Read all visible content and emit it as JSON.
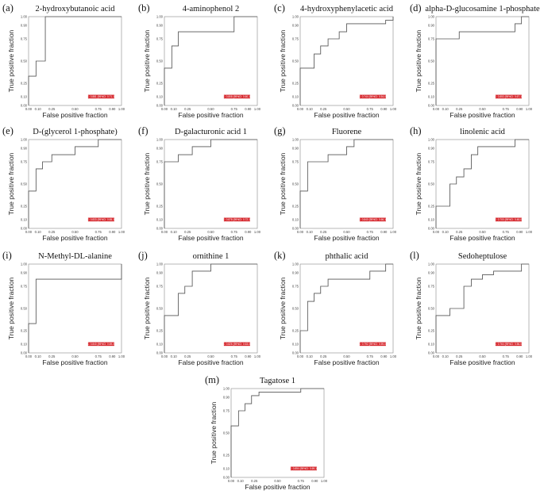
{
  "figure": {
    "axis_x_label": "False positive fraction",
    "axis_y_label": "True positive fraction",
    "colors": {
      "curve": "#555555",
      "frame": "#888888",
      "auc_box": "#d6262c",
      "background": "#ffffff"
    }
  },
  "chart_data": [
    {
      "type": "line",
      "panel": "(a)",
      "title": "2-hydroxybutanoic acid",
      "xlabel": "False positive fraction",
      "ylabel": "True positive fraction",
      "xlim": [
        0,
        1
      ],
      "ylim": [
        0,
        1
      ],
      "xticks": [
        "0.00",
        "0.10",
        "0.25",
        "0.50",
        "0.75",
        "0.90",
        "1.00"
      ],
      "yticks": [
        "0.00",
        "0.10",
        "0.25",
        "0.50",
        "0.75",
        "0.90",
        "1.00"
      ],
      "x": [
        0,
        0,
        0.08,
        0.08,
        0.18,
        0.18,
        1.0
      ],
      "y": [
        0,
        0.33,
        0.33,
        0.5,
        0.5,
        1.0,
        1.0
      ],
      "auc_label": "AUC: 0.881 (95%CI: 0.71-1.00)"
    },
    {
      "type": "line",
      "panel": "(b)",
      "title": "4-aminophenol 2",
      "xlabel": "False positive fraction",
      "ylabel": "True positive fraction",
      "xlim": [
        0,
        1
      ],
      "ylim": [
        0,
        1
      ],
      "xticks": [
        "0.00",
        "0.10",
        "0.25",
        "0.50",
        "0.75",
        "0.90",
        "1.00"
      ],
      "yticks": [
        "0.00",
        "0.10",
        "0.25",
        "0.50",
        "0.75",
        "0.90",
        "1.00"
      ],
      "x": [
        0,
        0,
        0.08,
        0.08,
        0.15,
        0.15,
        0.75,
        0.75,
        1.0
      ],
      "y": [
        0,
        0.42,
        0.42,
        0.67,
        0.67,
        0.83,
        0.83,
        1.0,
        1.0
      ],
      "auc_label": "AUC: 0.808 (95%CI: 0.60-1.00)"
    },
    {
      "type": "line",
      "panel": "(c)",
      "title": "4-hydroxyphenylacetic acid",
      "xlabel": "False positive fraction",
      "ylabel": "True positive fraction",
      "xlim": [
        0,
        1
      ],
      "ylim": [
        0,
        1
      ],
      "xticks": [
        "0.00",
        "0.10",
        "0.25",
        "0.50",
        "0.75",
        "0.90",
        "1.00"
      ],
      "yticks": [
        "0.00",
        "0.10",
        "0.25",
        "0.50",
        "0.75",
        "0.90",
        "1.00"
      ],
      "x": [
        0,
        0,
        0.15,
        0.15,
        0.22,
        0.22,
        0.3,
        0.3,
        0.42,
        0.42,
        0.5,
        0.5,
        0.92,
        0.92,
        1.0,
        1.0
      ],
      "y": [
        0,
        0.42,
        0.42,
        0.58,
        0.58,
        0.67,
        0.67,
        0.75,
        0.75,
        0.83,
        0.83,
        0.92,
        0.92,
        0.96,
        0.96,
        1.0
      ],
      "auc_label": "AUC: 0.744 (95%CI: 0.54-0.95)"
    },
    {
      "type": "line",
      "panel": "(d)",
      "title": "alpha-D-glucosamine 1-phosphate",
      "xlabel": "False positive fraction",
      "ylabel": "True positive fraction",
      "xlim": [
        0,
        1
      ],
      "ylim": [
        0,
        1
      ],
      "xticks": [
        "0.00",
        "0.10",
        "0.25",
        "0.50",
        "0.75",
        "0.90",
        "1.00"
      ],
      "yticks": [
        "0.00",
        "0.10",
        "0.25",
        "0.50",
        "0.75",
        "0.90",
        "1.00"
      ],
      "x": [
        0,
        0,
        0.25,
        0.25,
        0.85,
        0.85,
        0.92,
        0.92,
        1.0
      ],
      "y": [
        0,
        0.75,
        0.75,
        0.83,
        0.83,
        0.92,
        0.92,
        1.0,
        1.0
      ],
      "auc_label": "AUC: 0.853 (95%CI: 0.67-1.00)"
    },
    {
      "type": "line",
      "panel": "(e)",
      "title": "D-(glycerol 1-phosphate)",
      "xlabel": "False positive fraction",
      "ylabel": "True positive fraction",
      "xlim": [
        0,
        1
      ],
      "ylim": [
        0,
        1
      ],
      "xticks": [
        "0.00",
        "0.10",
        "0.25",
        "0.50",
        "0.75",
        "0.90",
        "1.00"
      ],
      "yticks": [
        "0.00",
        "0.10",
        "0.25",
        "0.50",
        "0.75",
        "0.90",
        "1.00"
      ],
      "x": [
        0,
        0,
        0.08,
        0.08,
        0.15,
        0.15,
        0.25,
        0.25,
        0.5,
        0.5,
        0.75,
        0.75,
        1.0
      ],
      "y": [
        0,
        0.42,
        0.42,
        0.67,
        0.67,
        0.75,
        0.75,
        0.83,
        0.83,
        0.92,
        0.92,
        1.0,
        1.0
      ],
      "auc_label": "AUC: 0.833 (95%CI: 0.65-1.00)"
    },
    {
      "type": "line",
      "panel": "(f)",
      "title": "D-galacturonic acid 1",
      "xlabel": "False positive fraction",
      "ylabel": "True positive fraction",
      "xlim": [
        0,
        1
      ],
      "ylim": [
        0,
        1
      ],
      "xticks": [
        "0.00",
        "0.10",
        "0.25",
        "0.50",
        "0.75",
        "0.90",
        "1.00"
      ],
      "yticks": [
        "0.00",
        "0.10",
        "0.25",
        "0.50",
        "0.75",
        "0.90",
        "1.00"
      ],
      "x": [
        0,
        0,
        0.15,
        0.15,
        0.3,
        0.3,
        0.5,
        0.5,
        1.0
      ],
      "y": [
        0,
        0.75,
        0.75,
        0.83,
        0.83,
        0.92,
        0.92,
        1.0,
        1.0
      ],
      "auc_label": "AUC: 0.878 (95%CI: 0.72-1.00)"
    },
    {
      "type": "line",
      "panel": "(g)",
      "title": "Fluorene",
      "xlabel": "False positive fraction",
      "ylabel": "True positive fraction",
      "xlim": [
        0,
        1
      ],
      "ylim": [
        0,
        1
      ],
      "xticks": [
        "0.00",
        "0.10",
        "0.25",
        "0.50",
        "0.75",
        "0.90",
        "1.00"
      ],
      "yticks": [
        "0.00",
        "0.10",
        "0.25",
        "0.50",
        "0.75",
        "0.90",
        "1.00"
      ],
      "x": [
        0,
        0,
        0.08,
        0.08,
        0.3,
        0.3,
        0.5,
        0.5,
        0.58,
        0.58,
        1.0
      ],
      "y": [
        0,
        0.42,
        0.42,
        0.75,
        0.75,
        0.83,
        0.83,
        0.92,
        0.92,
        1.0,
        1.0
      ],
      "auc_label": "AUC: 0.840 (95%CI: 0.66-1.00)"
    },
    {
      "type": "line",
      "panel": "(h)",
      "title": "linolenic acid",
      "xlabel": "False positive fraction",
      "ylabel": "True positive fraction",
      "xlim": [
        0,
        1
      ],
      "ylim": [
        0,
        1
      ],
      "xticks": [
        "0.00",
        "0.10",
        "0.25",
        "0.50",
        "0.75",
        "0.90",
        "1.00"
      ],
      "yticks": [
        "0.00",
        "0.10",
        "0.25",
        "0.50",
        "0.75",
        "0.90",
        "1.00"
      ],
      "x": [
        0,
        0,
        0.15,
        0.15,
        0.22,
        0.22,
        0.3,
        0.3,
        0.38,
        0.38,
        0.45,
        0.45,
        0.85,
        0.85,
        1.0
      ],
      "y": [
        0,
        0.25,
        0.25,
        0.5,
        0.5,
        0.58,
        0.58,
        0.67,
        0.67,
        0.83,
        0.83,
        0.92,
        0.92,
        1.0,
        1.0
      ],
      "auc_label": "AUC: 0.700 (95%CI: 0.48-0.92)"
    },
    {
      "type": "line",
      "panel": "(i)",
      "title": "N-Methyl-DL-alanine",
      "xlabel": "False positive fraction",
      "ylabel": "True positive fraction",
      "xlim": [
        0,
        1
      ],
      "ylim": [
        0,
        1
      ],
      "xticks": [
        "0.00",
        "0.10",
        "0.25",
        "0.50",
        "0.75",
        "0.90",
        "1.00"
      ],
      "yticks": [
        "0.00",
        "0.10",
        "0.25",
        "0.50",
        "0.75",
        "0.90",
        "1.00"
      ],
      "x": [
        0,
        0,
        0.08,
        0.08,
        1.0,
        1.0
      ],
      "y": [
        0,
        0.33,
        0.33,
        0.83,
        0.83,
        1.0
      ],
      "auc_label": "AUC: 0.840 (95%CI: 0.69-0.99)"
    },
    {
      "type": "line",
      "panel": "(j)",
      "title": "ornithine 1",
      "xlabel": "False positive fraction",
      "ylabel": "True positive fraction",
      "xlim": [
        0,
        1
      ],
      "ylim": [
        0,
        1
      ],
      "xticks": [
        "0.00",
        "0.10",
        "0.25",
        "0.50",
        "0.75",
        "0.90",
        "1.00"
      ],
      "yticks": [
        "0.00",
        "0.10",
        "0.25",
        "0.50",
        "0.75",
        "0.90",
        "1.00"
      ],
      "x": [
        0,
        0,
        0.15,
        0.15,
        0.22,
        0.22,
        0.3,
        0.3,
        0.5,
        0.5,
        1.0
      ],
      "y": [
        0,
        0.42,
        0.42,
        0.67,
        0.67,
        0.75,
        0.75,
        0.92,
        0.92,
        1.0,
        1.0
      ],
      "auc_label": "AUC: 0.826 (95%CI: 0.63-0.99)"
    },
    {
      "type": "line",
      "panel": "(k)",
      "title": "phthalic acid",
      "xlabel": "False positive fraction",
      "ylabel": "True positive fraction",
      "xlim": [
        0,
        1
      ],
      "ylim": [
        0,
        1
      ],
      "xticks": [
        "0.00",
        "0.10",
        "0.25",
        "0.50",
        "0.75",
        "0.90",
        "1.00"
      ],
      "yticks": [
        "0.00",
        "0.10",
        "0.25",
        "0.50",
        "0.75",
        "0.90",
        "1.00"
      ],
      "x": [
        0,
        0,
        0.08,
        0.08,
        0.15,
        0.15,
        0.22,
        0.22,
        0.3,
        0.3,
        0.75,
        0.75,
        0.92,
        0.92,
        1.0
      ],
      "y": [
        0,
        0.25,
        0.25,
        0.58,
        0.58,
        0.67,
        0.67,
        0.75,
        0.75,
        0.83,
        0.83,
        0.92,
        0.92,
        1.0,
        1.0
      ],
      "auc_label": "AUC: 0.792 (95%CI: 0.59-0.99)"
    },
    {
      "type": "line",
      "panel": "(l)",
      "title": "Sedoheptulose",
      "xlabel": "False positive fraction",
      "ylabel": "True positive fraction",
      "xlim": [
        0,
        1
      ],
      "ylim": [
        0,
        1
      ],
      "xticks": [
        "0.00",
        "0.10",
        "0.25",
        "0.50",
        "0.75",
        "0.90",
        "1.00"
      ],
      "yticks": [
        "0.00",
        "0.10",
        "0.25",
        "0.50",
        "0.75",
        "0.90",
        "1.00"
      ],
      "x": [
        0,
        0,
        0.15,
        0.15,
        0.3,
        0.3,
        0.38,
        0.38,
        0.5,
        0.5,
        0.62,
        0.62,
        0.92,
        0.92,
        1.0
      ],
      "y": [
        0,
        0.42,
        0.42,
        0.5,
        0.5,
        0.75,
        0.75,
        0.83,
        0.83,
        0.88,
        0.88,
        0.92,
        0.92,
        1.0,
        1.0
      ],
      "auc_label": "AUC: 0.764 (95%CI: 0.56-0.96)"
    },
    {
      "type": "line",
      "panel": "(m)",
      "title": "Tagatose 1",
      "xlabel": "False positive fraction",
      "ylabel": "True positive fraction",
      "xlim": [
        0,
        1
      ],
      "ylim": [
        0,
        1
      ],
      "xticks": [
        "0.00",
        "0.10",
        "0.25",
        "0.50",
        "0.75",
        "0.90",
        "1.00"
      ],
      "yticks": [
        "0.00",
        "0.10",
        "0.25",
        "0.50",
        "0.75",
        "0.90",
        "1.00"
      ],
      "x": [
        0,
        0,
        0.08,
        0.08,
        0.15,
        0.15,
        0.22,
        0.22,
        0.3,
        0.3,
        0.75,
        0.75,
        1.0
      ],
      "y": [
        0,
        0.58,
        0.58,
        0.75,
        0.75,
        0.83,
        0.83,
        0.92,
        0.92,
        0.96,
        0.96,
        1.0,
        1.0
      ],
      "auc_label": "AUC: 0.854 (95%CI: 0.69-1.00)"
    }
  ]
}
